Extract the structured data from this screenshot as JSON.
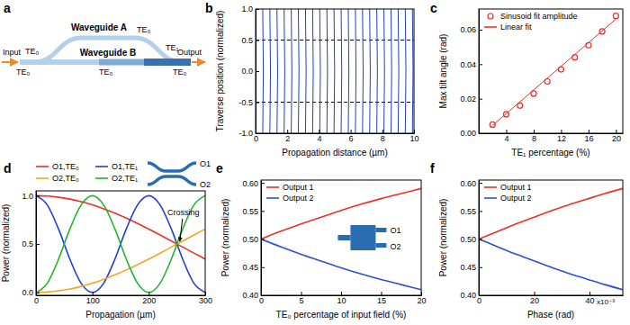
{
  "diagram": {
    "panel": "a",
    "waveguide_a": "Waveguide A",
    "waveguide_b": "Waveguide B",
    "input": "Input",
    "output": "Output",
    "mode_labels": [
      "TE₀",
      "TE₀",
      "TE₀",
      "TE₀",
      "TE₁",
      "TE₀"
    ]
  },
  "chart_data": [
    {
      "type": "line",
      "title": "b",
      "xlabel": "Propagation distance (µm)",
      "ylabel": "Traverse position (normalized)",
      "xlim": [
        0,
        10
      ],
      "ylim": [
        -1,
        1
      ],
      "xticks": [
        0,
        2,
        4,
        6,
        8,
        10
      ],
      "yticks": [
        {
          "value": -1,
          "label": "-1.0"
        },
        {
          "value": -0.5,
          "label": "-0.5"
        },
        {
          "value": 0,
          "label": "0.0"
        },
        {
          "value": 0.5,
          "label": "0.5"
        },
        {
          "value": 1,
          "label": "1.0"
        }
      ],
      "color": "#1f3fbf",
      "reference_lines": [
        -0.5,
        0.5
      ],
      "series": [
        {
          "x": [
            0.45,
            0.49,
            0.45
          ],
          "values": [
            -1,
            0,
            1
          ]
        },
        {
          "x": [
            0.9,
            0.94,
            0.9
          ],
          "values": [
            -1,
            0,
            1
          ]
        },
        {
          "x": [
            1.35,
            1.39,
            1.35
          ],
          "values": [
            -1,
            0,
            1
          ]
        },
        {
          "x": [
            1.8,
            1.84,
            1.8
          ],
          "values": [
            -1,
            0,
            1
          ]
        },
        {
          "x": [
            2.25,
            2.29,
            2.25
          ],
          "values": [
            -1,
            0,
            1
          ]
        },
        {
          "x": [
            2.7,
            2.74,
            2.7
          ],
          "values": [
            -1,
            0,
            1
          ]
        },
        {
          "x": [
            3.15,
            3.19,
            3.15
          ],
          "values": [
            -1,
            0,
            1
          ]
        },
        {
          "x": [
            3.6,
            3.64,
            3.6
          ],
          "values": [
            -1,
            0,
            1
          ]
        },
        {
          "x": [
            4.05,
            4.09,
            4.05
          ],
          "values": [
            -1,
            0,
            1
          ]
        },
        {
          "x": [
            4.5,
            4.54,
            4.5
          ],
          "values": [
            -1,
            0,
            1
          ]
        },
        {
          "x": [
            4.95,
            4.99,
            4.95
          ],
          "values": [
            -1,
            0,
            1
          ]
        },
        {
          "x": [
            5.4,
            5.44,
            5.4
          ],
          "values": [
            -1,
            0,
            1
          ]
        },
        {
          "x": [
            5.85,
            5.89,
            5.85
          ],
          "values": [
            -1,
            0,
            1
          ]
        },
        {
          "x": [
            6.3,
            6.34,
            6.3
          ],
          "values": [
            -1,
            0,
            1
          ]
        },
        {
          "x": [
            6.75,
            6.79,
            6.75
          ],
          "values": [
            -1,
            0,
            1
          ]
        },
        {
          "x": [
            7.2,
            7.24,
            7.2
          ],
          "values": [
            -1,
            0,
            1
          ]
        },
        {
          "x": [
            7.65,
            7.69,
            7.65
          ],
          "values": [
            -1,
            0,
            1
          ]
        },
        {
          "x": [
            8.1,
            8.14,
            8.1
          ],
          "values": [
            -1,
            0,
            1
          ]
        },
        {
          "x": [
            8.55,
            8.59,
            8.55
          ],
          "values": [
            -1,
            0,
            1
          ]
        },
        {
          "x": [
            9.0,
            9.04,
            9.0
          ],
          "values": [
            -1,
            0,
            1
          ]
        },
        {
          "x": [
            9.45,
            9.49,
            9.45
          ],
          "values": [
            -1,
            0,
            1
          ]
        },
        {
          "x": [
            9.9,
            9.94,
            9.9
          ],
          "values": [
            -1,
            0,
            1
          ]
        }
      ]
    },
    {
      "type": "scatter",
      "title": "c",
      "xlabel": "TE₁ percentage (%)",
      "ylabel": "Max tilt angle (rad)",
      "xlim": [
        0,
        21
      ],
      "ylim": [
        0,
        0.072
      ],
      "xticks": [
        4,
        8,
        12,
        16,
        20
      ],
      "yticks": [
        {
          "value": 0,
          "label": "0.00"
        },
        {
          "value": 0.02,
          "label": "0.02"
        },
        {
          "value": 0.04,
          "label": "0.04"
        },
        {
          "value": 0.06,
          "label": "0.06"
        }
      ],
      "legend": "upper left",
      "series": [
        {
          "name": "Sinusoid fit amplitude",
          "type": "scatter",
          "marker": "circle",
          "color": "#e8312a",
          "x": [
            2,
            4,
            6,
            8,
            10,
            12,
            14,
            16,
            18,
            20
          ],
          "values": [
            0.005,
            0.011,
            0.016,
            0.023,
            0.03,
            0.037,
            0.044,
            0.051,
            0.059,
            0.068
          ]
        },
        {
          "name": "Linear fit",
          "type": "line",
          "color": "#e8312a",
          "x": [
            2,
            20
          ],
          "values": [
            0.0045,
            0.0662
          ]
        }
      ]
    },
    {
      "type": "line",
      "title": "d",
      "xlabel": "Propagation (µm)",
      "ylabel": "Power (normalized)",
      "xlim": [
        0,
        300
      ],
      "ylim": [
        -0.03,
        1.05
      ],
      "xticks": [
        0,
        100,
        200,
        300
      ],
      "yticks": [
        {
          "value": 0,
          "label": "0.0"
        },
        {
          "value": 0.5,
          "label": "0.5"
        },
        {
          "value": 1,
          "label": "1.0"
        }
      ],
      "legend": "top",
      "inset_labels": [
        "O1",
        "O2"
      ],
      "annotations": [
        {
          "text": "Crossing",
          "x": 255,
          "y": 0.5
        }
      ],
      "x": [
        0,
        20,
        40,
        60,
        80,
        100,
        120,
        140,
        160,
        180,
        200,
        220,
        240,
        260,
        280,
        300
      ],
      "series": [
        {
          "name": "O1,TE₀",
          "color": "#e8312a",
          "values": [
            1,
            0.996,
            0.984,
            0.965,
            0.938,
            0.905,
            0.864,
            0.819,
            0.768,
            0.713,
            0.655,
            0.594,
            0.531,
            0.469,
            0.406,
            0.345
          ]
        },
        {
          "name": "O1,TE₁",
          "color": "#1f3fd6",
          "values": [
            1,
            0.905,
            0.655,
            0.345,
            0.095,
            0,
            0.095,
            0.345,
            0.655,
            0.905,
            1,
            0.905,
            0.655,
            0.345,
            0.095,
            0
          ]
        },
        {
          "name": "O2,TE₀",
          "color": "#f5a623",
          "values": [
            0,
            0.004,
            0.016,
            0.035,
            0.062,
            0.095,
            0.136,
            0.181,
            0.232,
            0.287,
            0.345,
            0.406,
            0.469,
            0.531,
            0.594,
            0.655
          ]
        },
        {
          "name": "O2,TE₁",
          "color": "#22b52c",
          "values": [
            0,
            0.095,
            0.345,
            0.655,
            0.905,
            1,
            0.905,
            0.655,
            0.345,
            0.095,
            0,
            0.095,
            0.345,
            0.655,
            0.905,
            1
          ]
        }
      ]
    },
    {
      "type": "line",
      "title": "e",
      "xlabel": "TE₀ percentage of input field (%)",
      "ylabel": "Power (normalized)",
      "xlim": [
        0,
        20
      ],
      "ylim": [
        0.4,
        0.605
      ],
      "xticks": [
        0,
        5,
        10,
        15,
        20
      ],
      "yticks": [
        {
          "value": 0.4,
          "label": "0.40"
        },
        {
          "value": 0.45,
          "label": "0.45"
        },
        {
          "value": 0.5,
          "label": "0.50"
        },
        {
          "value": 0.55,
          "label": "0.55"
        },
        {
          "value": 0.6,
          "label": "0.60"
        }
      ],
      "legend": "upper left",
      "inset_labels": [
        "O1",
        "O2"
      ],
      "x": [
        0,
        2.5,
        5,
        7.5,
        10,
        12.5,
        15,
        17.5,
        20
      ],
      "series": [
        {
          "name": "Output 1",
          "color": "#e8312a",
          "values": [
            0.5,
            0.514,
            0.527,
            0.539,
            0.551,
            0.562,
            0.572,
            0.581,
            0.59
          ]
        },
        {
          "name": "Output 2",
          "color": "#2b4fd8",
          "values": [
            0.5,
            0.486,
            0.473,
            0.461,
            0.449,
            0.438,
            0.428,
            0.419,
            0.41
          ]
        }
      ]
    },
    {
      "type": "line",
      "title": "f",
      "xlabel": "Phase (rad)",
      "ylabel": "Power (normalized)",
      "xlim": [
        0,
        0.052
      ],
      "ylim": [
        0.4,
        0.605
      ],
      "xticks": [
        0,
        {
          "value": 0.02,
          "label": "20"
        },
        {
          "value": 0.04,
          "label": "40"
        }
      ],
      "yticks": [
        {
          "value": 0.4,
          "label": "0.40"
        },
        {
          "value": 0.45,
          "label": "0.45"
        },
        {
          "value": 0.5,
          "label": "0.50"
        },
        {
          "value": 0.55,
          "label": "0.55"
        },
        {
          "value": 0.6,
          "label": "0.60"
        }
      ],
      "legend": "upper left",
      "annotations": [
        {
          "text": "x10⁻³"
        }
      ],
      "x": [
        0,
        0.0065,
        0.013,
        0.0195,
        0.026,
        0.0325,
        0.039,
        0.0455,
        0.052
      ],
      "series": [
        {
          "name": "Output 1",
          "color": "#e8312a",
          "values": [
            0.5,
            0.513,
            0.526,
            0.538,
            0.55,
            0.561,
            0.571,
            0.581,
            0.59
          ]
        },
        {
          "name": "Output 2",
          "color": "#2b4fd8",
          "values": [
            0.5,
            0.487,
            0.474,
            0.462,
            0.45,
            0.439,
            0.429,
            0.419,
            0.41
          ]
        }
      ]
    }
  ]
}
